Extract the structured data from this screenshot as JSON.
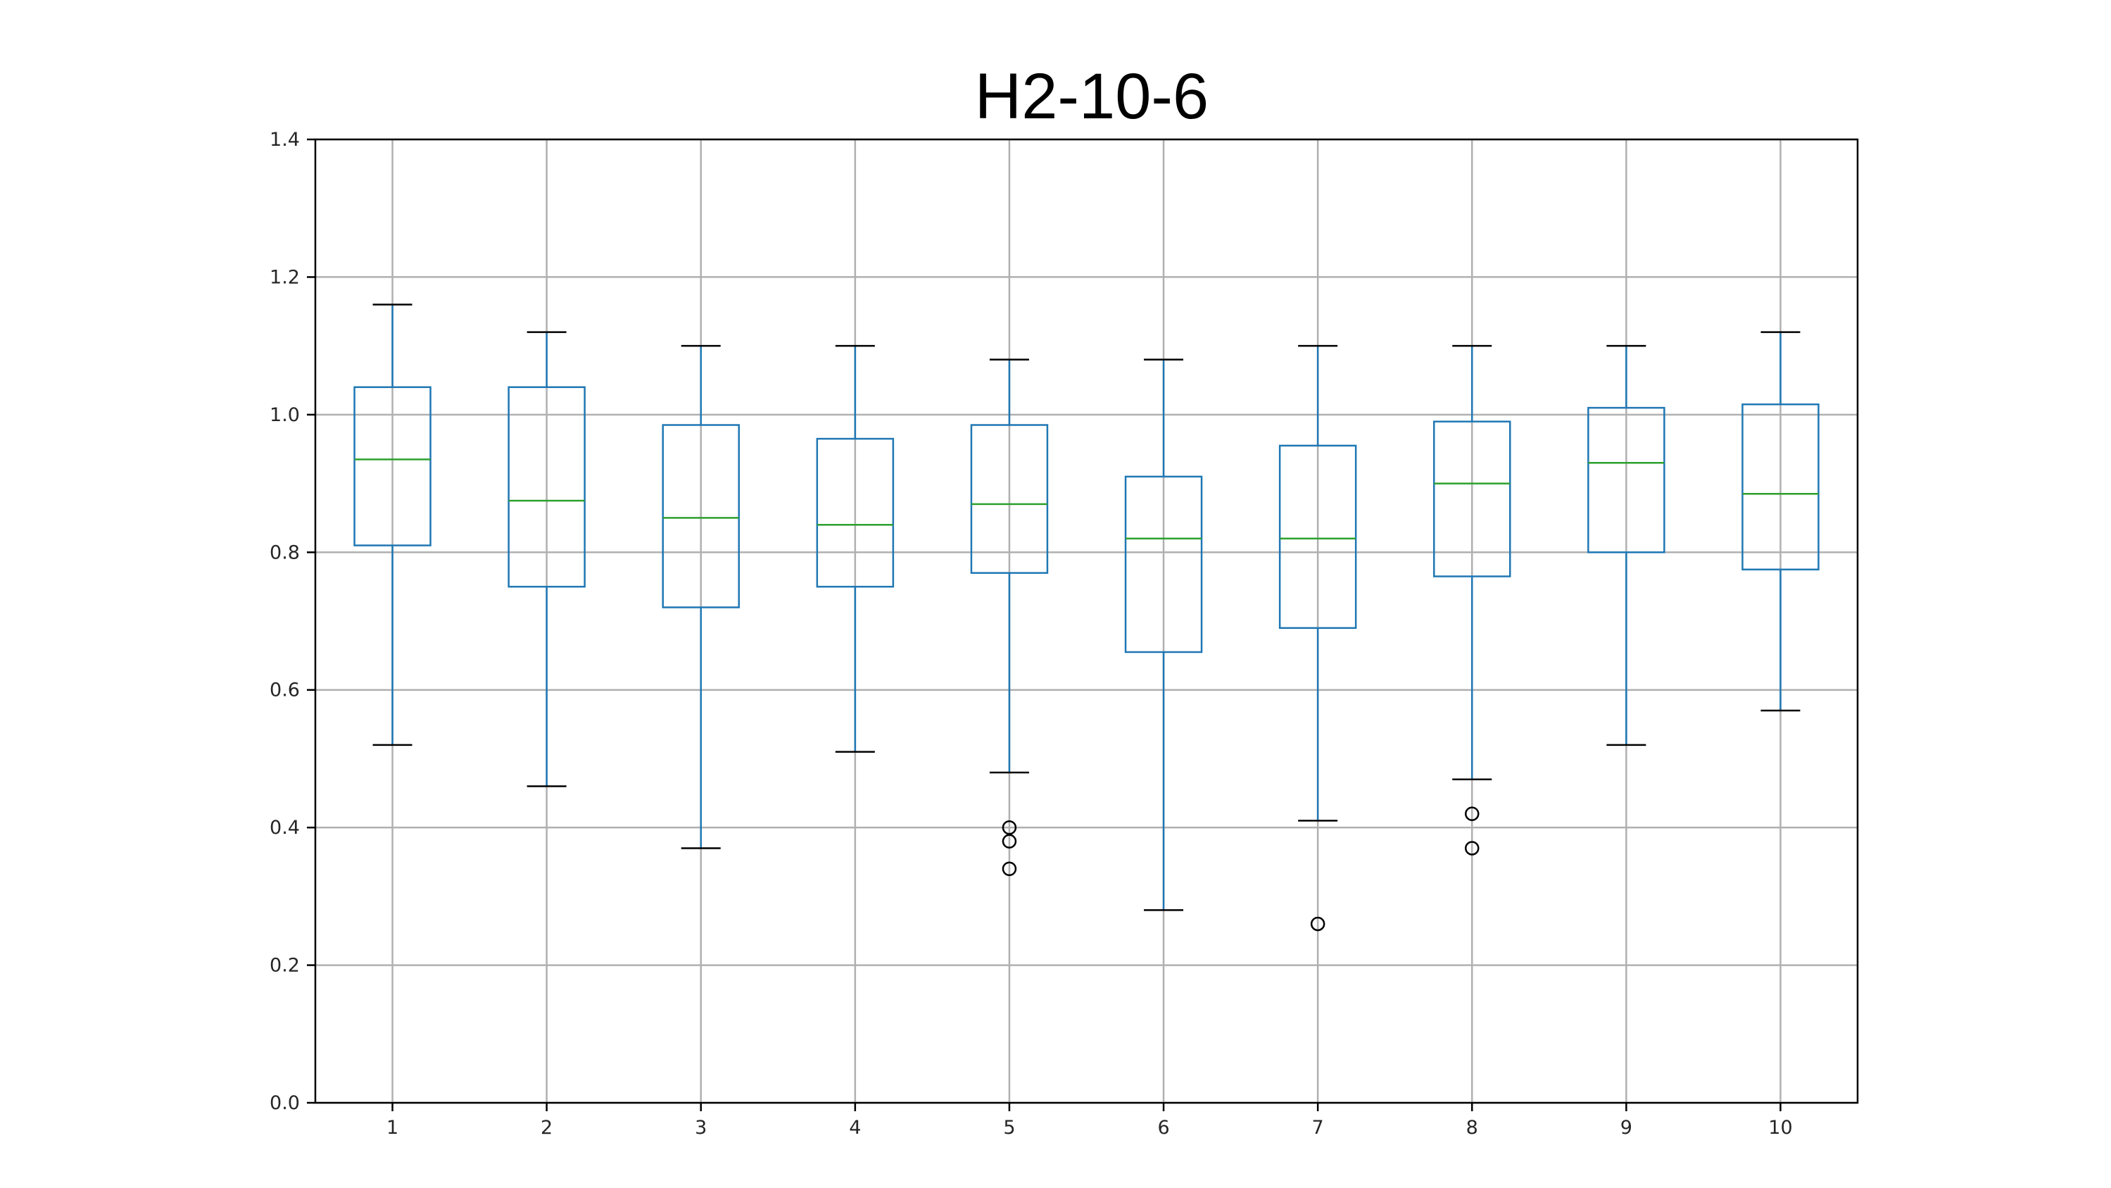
{
  "chart_data": {
    "type": "boxplot",
    "title": "H2-10-6",
    "xlabel": "",
    "ylabel": "",
    "categories": [
      "1",
      "2",
      "3",
      "4",
      "5",
      "6",
      "7",
      "8",
      "9",
      "10"
    ],
    "ylim": [
      0.0,
      1.4
    ],
    "yticks": [
      0.0,
      0.2,
      0.4,
      0.6,
      0.8,
      1.0,
      1.2,
      1.4
    ],
    "ytick_labels": [
      "0.0",
      "0.2",
      "0.4",
      "0.6",
      "0.8",
      "1.0",
      "1.2",
      "1.4"
    ],
    "grid": true,
    "boxes": [
      {
        "label": "1",
        "whisker_low": 0.52,
        "q1": 0.81,
        "median": 0.935,
        "q3": 1.04,
        "whisker_high": 1.16,
        "fliers": []
      },
      {
        "label": "2",
        "whisker_low": 0.46,
        "q1": 0.75,
        "median": 0.875,
        "q3": 1.04,
        "whisker_high": 1.12,
        "fliers": []
      },
      {
        "label": "3",
        "whisker_low": 0.37,
        "q1": 0.72,
        "median": 0.85,
        "q3": 0.985,
        "whisker_high": 1.1,
        "fliers": []
      },
      {
        "label": "4",
        "whisker_low": 0.51,
        "q1": 0.75,
        "median": 0.84,
        "q3": 0.965,
        "whisker_high": 1.1,
        "fliers": []
      },
      {
        "label": "5",
        "whisker_low": 0.48,
        "q1": 0.77,
        "median": 0.87,
        "q3": 0.985,
        "whisker_high": 1.08,
        "fliers": [
          0.4,
          0.38,
          0.34
        ]
      },
      {
        "label": "6",
        "whisker_low": 0.28,
        "q1": 0.655,
        "median": 0.82,
        "q3": 0.91,
        "whisker_high": 1.08,
        "fliers": []
      },
      {
        "label": "7",
        "whisker_low": 0.41,
        "q1": 0.69,
        "median": 0.82,
        "q3": 0.955,
        "whisker_high": 1.1,
        "fliers": [
          0.26
        ]
      },
      {
        "label": "8",
        "whisker_low": 0.47,
        "q1": 0.765,
        "median": 0.9,
        "q3": 0.99,
        "whisker_high": 1.1,
        "fliers": [
          0.42,
          0.37
        ]
      },
      {
        "label": "9",
        "whisker_low": 0.52,
        "q1": 0.8,
        "median": 0.93,
        "q3": 1.01,
        "whisker_high": 1.1,
        "fliers": []
      },
      {
        "label": "10",
        "whisker_low": 0.57,
        "q1": 0.775,
        "median": 0.885,
        "q3": 1.015,
        "whisker_high": 1.12,
        "fliers": []
      }
    ],
    "colors": {
      "box": "#1f77b4",
      "median": "#2ca02c",
      "cap": "#000000",
      "flier": "#000000",
      "grid": "#b0b0b0"
    }
  }
}
